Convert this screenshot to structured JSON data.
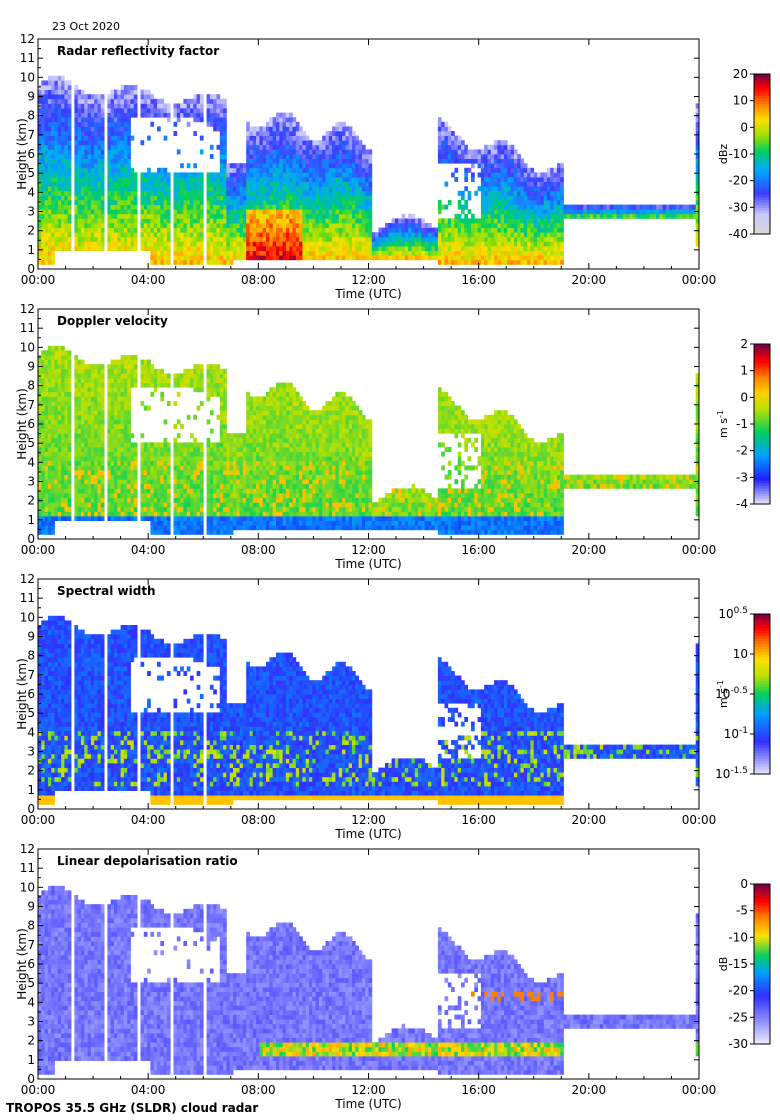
{
  "date": "23 Oct 2020",
  "footer": "TROPOS 35.5 GHz (SLDR) cloud radar",
  "chart_data": [
    {
      "type": "heatmap",
      "title": "Radar reflectivity factor",
      "xlabel": "Time (UTC)",
      "ylabel": "Height (km)",
      "x_ticks": [
        "00:00",
        "04:00",
        "08:00",
        "12:00",
        "16:00",
        "20:00",
        "00:00"
      ],
      "y_ticks": [
        0,
        1,
        2,
        3,
        4,
        5,
        6,
        7,
        8,
        9,
        10,
        11,
        12
      ],
      "xlim_hours": [
        0,
        24
      ],
      "ylim_km": [
        0,
        12
      ],
      "colorbar": {
        "unit": "dBz",
        "range": [
          -40,
          20
        ],
        "ticks": [
          "20",
          "10",
          "0",
          "-10",
          "-20",
          "-30",
          "-40"
        ]
      },
      "cmap": "reflectivity",
      "data_label": "log-scaled reflectivity field: dense cloud 0–9.5 km from 00:00–07:00, strong returns near 0.5–3 km around 08:00–09:00, layers 2–7 km around 16:00–19:00, thin layer near 3 km until 24:00"
    },
    {
      "type": "heatmap",
      "title": "Doppler velocity",
      "xlabel": "Time (UTC)",
      "ylabel": "Height (km)",
      "x_ticks": [
        "00:00",
        "04:00",
        "08:00",
        "12:00",
        "16:00",
        "20:00",
        "00:00"
      ],
      "y_ticks": [
        0,
        1,
        2,
        3,
        4,
        5,
        6,
        7,
        8,
        9,
        10,
        11,
        12
      ],
      "xlim_hours": [
        0,
        24
      ],
      "ylim_km": [
        0,
        12
      ],
      "colorbar": {
        "unit": "m s",
        "unit_sup": "-1",
        "range": [
          -4,
          2
        ],
        "ticks": [
          "2",
          "1",
          "0",
          "-1",
          "-2",
          "-3",
          "-4"
        ]
      },
      "cmap": "velocity",
      "data_label": "mostly -2 to -1 m/s (green/yellow), faster fall (blue) below 1 km, orange streaks near 1–4 km"
    },
    {
      "type": "heatmap",
      "title": "Spectral width",
      "xlabel": "Time (UTC)",
      "ylabel": "Height (km)",
      "x_ticks": [
        "00:00",
        "04:00",
        "08:00",
        "12:00",
        "16:00",
        "20:00",
        "00:00"
      ],
      "y_ticks": [
        0,
        1,
        2,
        3,
        4,
        5,
        6,
        7,
        8,
        9,
        10,
        11,
        12
      ],
      "xlim_hours": [
        0,
        24
      ],
      "ylim_km": [
        0,
        12
      ],
      "colorbar": {
        "unit": "m s",
        "unit_sup": "-1",
        "range": [
          -1.5,
          0.5
        ],
        "log": true,
        "ticks": [
          {
            "base": "10",
            "exp": "0.5"
          },
          {
            "base": "10",
            "exp": ""
          },
          {
            "base": "10",
            "exp": "-0.5"
          },
          {
            "base": "10",
            "exp": "-1"
          },
          {
            "base": "10",
            "exp": "-1.5"
          }
        ]
      },
      "cmap": "width",
      "data_label": "mostly 10^-1 (blue), wider spectra (green/yellow) in layers 1–4 km and near ground"
    },
    {
      "type": "heatmap",
      "title": "Linear depolarisation ratio",
      "xlabel": "Time (UTC)",
      "ylabel": "Height (km)",
      "x_ticks": [
        "00:00",
        "04:00",
        "08:00",
        "12:00",
        "16:00",
        "20:00",
        "00:00"
      ],
      "y_ticks": [
        0,
        1,
        2,
        3,
        4,
        5,
        6,
        7,
        8,
        9,
        10,
        11,
        12
      ],
      "xlim_hours": [
        0,
        24
      ],
      "ylim_km": [
        0,
        12
      ],
      "colorbar": {
        "unit": "dB",
        "range": [
          -30,
          0
        ],
        "ticks": [
          "0",
          "-5",
          "-10",
          "-15",
          "-20",
          "-25",
          "-30"
        ]
      },
      "cmap": "ldr",
      "data_label": "mostly -25 to -20 dB (light blue/violet), higher values (orange/red) near melting layer ~1–2 km and 4 km after 14:00"
    }
  ]
}
